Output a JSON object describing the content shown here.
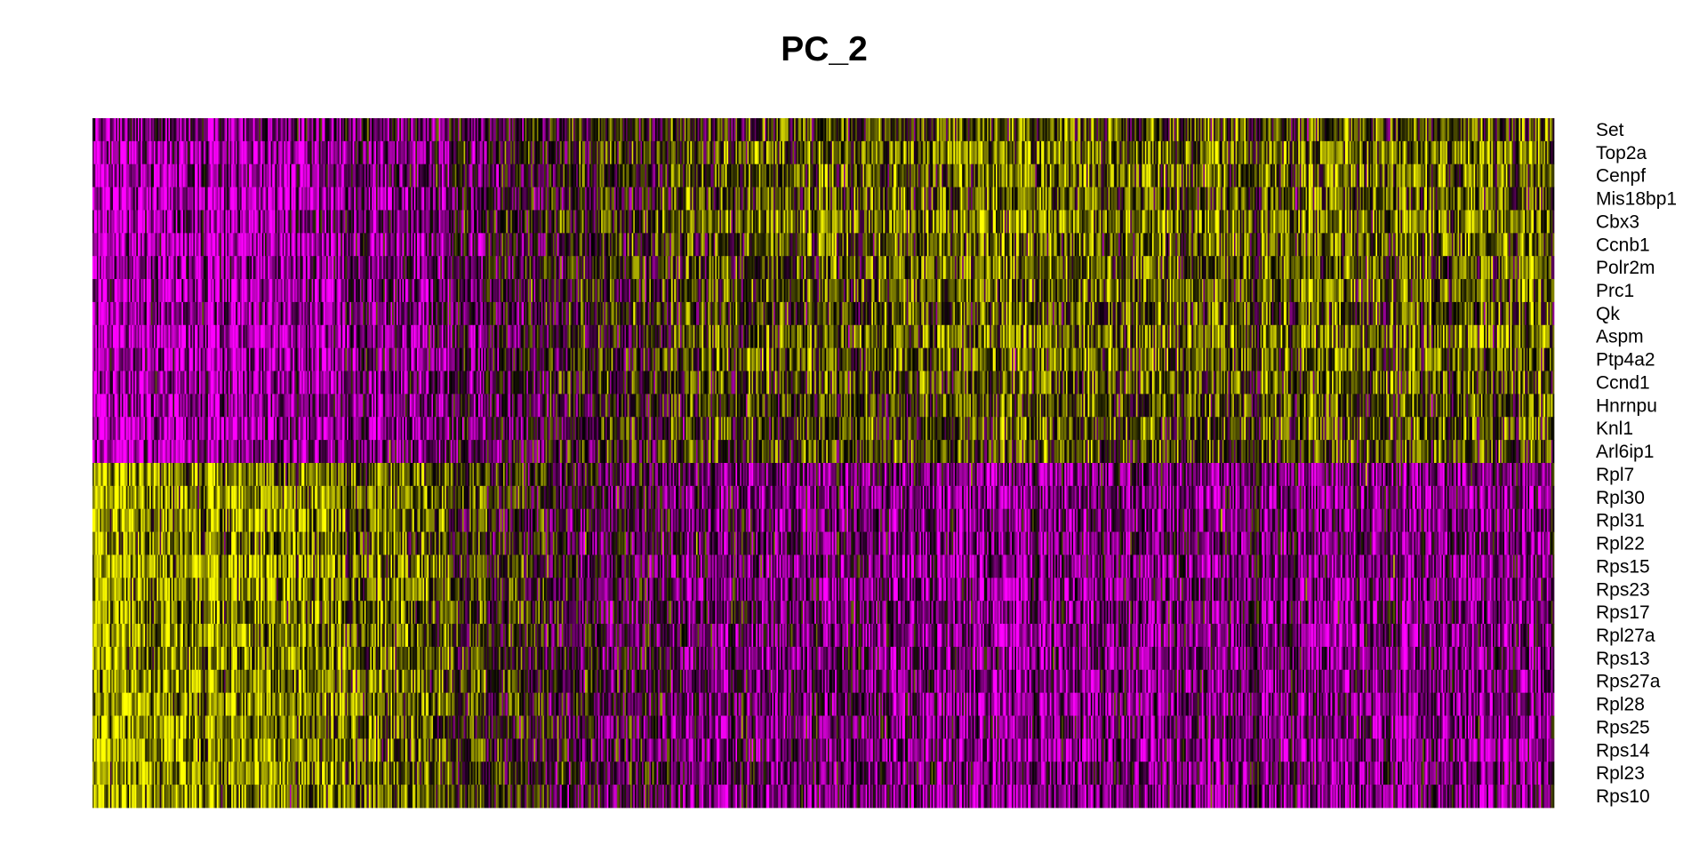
{
  "chart_data": {
    "type": "heatmap",
    "title": "PC_2",
    "xlabel": "",
    "ylabel": "",
    "legend": "none",
    "grid": false,
    "colors": {
      "low": "#FF00FF",
      "mid": "#000000",
      "high": "#FFFF00"
    },
    "color_scale": "magenta-black-yellow",
    "n_cells_estimated": 1000,
    "rows": [
      {
        "gene": "Set",
        "group": "top",
        "left_level": 0.25,
        "right_level": 0.62
      },
      {
        "gene": "Top2a",
        "group": "top",
        "left_level": 0.15,
        "right_level": 0.7
      },
      {
        "gene": "Cenpf",
        "group": "top",
        "left_level": 0.18,
        "right_level": 0.66
      },
      {
        "gene": "Mis18bp1",
        "group": "top",
        "left_level": 0.12,
        "right_level": 0.64
      },
      {
        "gene": "Cbx3",
        "group": "top",
        "left_level": 0.2,
        "right_level": 0.72
      },
      {
        "gene": "Ccnb1",
        "group": "top",
        "left_level": 0.15,
        "right_level": 0.66
      },
      {
        "gene": "Polr2m",
        "group": "top",
        "left_level": 0.2,
        "right_level": 0.64
      },
      {
        "gene": "Prc1",
        "group": "top",
        "left_level": 0.15,
        "right_level": 0.66
      },
      {
        "gene": "Qk",
        "group": "top",
        "left_level": 0.22,
        "right_level": 0.62
      },
      {
        "gene": "Aspm",
        "group": "top",
        "left_level": 0.12,
        "right_level": 0.68
      },
      {
        "gene": "Ptp4a2",
        "group": "top",
        "left_level": 0.18,
        "right_level": 0.66
      },
      {
        "gene": "Ccnd1",
        "group": "top",
        "left_level": 0.15,
        "right_level": 0.64
      },
      {
        "gene": "Hnrnpu",
        "group": "top",
        "left_level": 0.18,
        "right_level": 0.62
      },
      {
        "gene": "Knl1",
        "group": "top",
        "left_level": 0.12,
        "right_level": 0.62
      },
      {
        "gene": "Arl6ip1",
        "group": "top",
        "left_level": 0.18,
        "right_level": 0.62
      },
      {
        "gene": "Rpl7",
        "group": "bottom",
        "left_level": 0.8,
        "right_level": 0.28
      },
      {
        "gene": "Rpl30",
        "group": "bottom",
        "left_level": 0.82,
        "right_level": 0.26
      },
      {
        "gene": "Rpl31",
        "group": "bottom",
        "left_level": 0.8,
        "right_level": 0.28
      },
      {
        "gene": "Rpl22",
        "group": "bottom",
        "left_level": 0.76,
        "right_level": 0.3
      },
      {
        "gene": "Rps15",
        "group": "bottom",
        "left_level": 0.82,
        "right_level": 0.26
      },
      {
        "gene": "Rps23",
        "group": "bottom",
        "left_level": 0.82,
        "right_level": 0.26
      },
      {
        "gene": "Rps17",
        "group": "bottom",
        "left_level": 0.8,
        "right_level": 0.28
      },
      {
        "gene": "Rpl27a",
        "group": "bottom",
        "left_level": 0.82,
        "right_level": 0.26
      },
      {
        "gene": "Rps13",
        "group": "bottom",
        "left_level": 0.8,
        "right_level": 0.28
      },
      {
        "gene": "Rps27a",
        "group": "bottom",
        "left_level": 0.8,
        "right_level": 0.28
      },
      {
        "gene": "Rpl28",
        "group": "bottom",
        "left_level": 0.82,
        "right_level": 0.26
      },
      {
        "gene": "Rps25",
        "group": "bottom",
        "left_level": 0.78,
        "right_level": 0.28
      },
      {
        "gene": "Rps14",
        "group": "bottom",
        "left_level": 0.82,
        "right_level": 0.26
      },
      {
        "gene": "Rpl23",
        "group": "bottom",
        "left_level": 0.8,
        "right_level": 0.28
      },
      {
        "gene": "Rps10",
        "group": "bottom",
        "left_level": 0.82,
        "right_level": 0.26
      }
    ],
    "x_ticks": [],
    "y_ticks": []
  }
}
